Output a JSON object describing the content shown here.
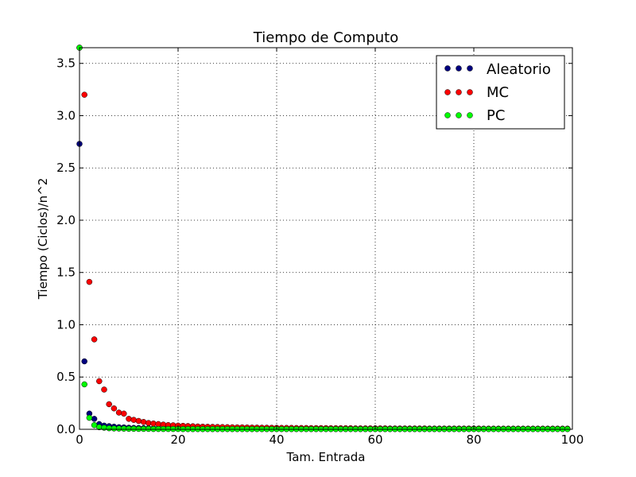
{
  "chart_data": {
    "type": "scatter",
    "title": "Tiempo de Computo",
    "xlabel": "Tam. Entrada",
    "ylabel": "Tiempo (Ciclos)/n^2",
    "xlim": [
      0,
      100
    ],
    "ylim": [
      0,
      3.65
    ],
    "xticks": [
      0,
      20,
      40,
      60,
      80,
      100
    ],
    "yticks": [
      0.0,
      0.5,
      1.0,
      1.5,
      2.0,
      2.5,
      3.0,
      3.5
    ],
    "grid": true,
    "legend_position": "top-right",
    "series": [
      {
        "name": "Aleatorio",
        "color": "#00007f",
        "values": [
          2.73,
          0.65,
          0.15,
          0.1,
          0.05,
          0.035,
          0.03,
          0.025,
          0.02,
          0.018,
          0.015,
          0.013,
          0.012,
          0.011,
          0.01,
          0.009,
          0.009,
          0.008,
          0.008,
          0.007,
          0.007,
          0.007,
          0.006,
          0.006,
          0.006,
          0.006,
          0.005,
          0.005,
          0.005,
          0.005,
          0.005,
          0.005,
          0.005,
          0.005,
          0.004,
          0.004,
          0.004,
          0.004,
          0.004,
          0.004,
          0.004,
          0.004,
          0.004,
          0.004,
          0.004,
          0.004,
          0.004,
          0.004,
          0.004,
          0.004,
          0.004,
          0.004,
          0.004,
          0.004,
          0.004,
          0.004,
          0.004,
          0.004,
          0.004,
          0.004,
          0.004,
          0.004,
          0.004,
          0.004,
          0.004,
          0.004,
          0.004,
          0.004,
          0.004,
          0.004,
          0.004,
          0.004,
          0.004,
          0.004,
          0.004,
          0.004,
          0.004,
          0.004,
          0.004,
          0.004,
          0.004,
          0.004,
          0.004,
          0.004,
          0.004,
          0.004,
          0.004,
          0.004,
          0.004,
          0.004,
          0.004,
          0.004,
          0.004,
          0.004,
          0.004,
          0.004,
          0.004,
          0.004,
          0.004,
          0.004
        ]
      },
      {
        "name": "MC",
        "color": "#ff0000",
        "values": [
          3.65,
          3.2,
          1.41,
          0.86,
          0.46,
          0.38,
          0.24,
          0.2,
          0.16,
          0.15,
          0.1,
          0.09,
          0.08,
          0.07,
          0.06,
          0.055,
          0.05,
          0.045,
          0.04,
          0.038,
          0.035,
          0.033,
          0.031,
          0.029,
          0.027,
          0.025,
          0.024,
          0.023,
          0.022,
          0.021,
          0.02,
          0.019,
          0.018,
          0.018,
          0.017,
          0.016,
          0.016,
          0.015,
          0.015,
          0.014,
          0.014,
          0.013,
          0.013,
          0.013,
          0.012,
          0.012,
          0.012,
          0.011,
          0.011,
          0.011,
          0.011,
          0.01,
          0.01,
          0.01,
          0.01,
          0.01,
          0.009,
          0.009,
          0.009,
          0.009,
          0.009,
          0.009,
          0.009,
          0.008,
          0.008,
          0.008,
          0.008,
          0.008,
          0.008,
          0.008,
          0.008,
          0.007,
          0.007,
          0.007,
          0.007,
          0.007,
          0.007,
          0.007,
          0.007,
          0.007,
          0.007,
          0.007,
          0.006,
          0.006,
          0.006,
          0.006,
          0.006,
          0.006,
          0.006,
          0.006,
          0.006,
          0.006,
          0.006,
          0.006,
          0.006,
          0.006,
          0.006,
          0.006,
          0.006,
          0.006
        ]
      },
      {
        "name": "PC",
        "color": "#00ff00",
        "values": [
          3.65,
          0.43,
          0.11,
          0.04,
          0.02,
          0.015,
          0.01,
          0.008,
          0.007,
          0.006,
          0.005,
          0.005,
          0.004,
          0.004,
          0.004,
          0.003,
          0.003,
          0.003,
          0.003,
          0.003,
          0.003,
          0.002,
          0.002,
          0.002,
          0.002,
          0.002,
          0.002,
          0.002,
          0.002,
          0.002,
          0.002,
          0.002,
          0.002,
          0.002,
          0.002,
          0.002,
          0.002,
          0.002,
          0.002,
          0.002,
          0.002,
          0.002,
          0.002,
          0.002,
          0.002,
          0.002,
          0.002,
          0.002,
          0.002,
          0.002,
          0.002,
          0.002,
          0.002,
          0.002,
          0.002,
          0.002,
          0.002,
          0.002,
          0.002,
          0.002,
          0.002,
          0.002,
          0.002,
          0.002,
          0.002,
          0.002,
          0.002,
          0.002,
          0.002,
          0.002,
          0.002,
          0.002,
          0.002,
          0.002,
          0.002,
          0.002,
          0.002,
          0.002,
          0.002,
          0.002,
          0.002,
          0.002,
          0.002,
          0.002,
          0.002,
          0.002,
          0.002,
          0.002,
          0.002,
          0.002,
          0.002,
          0.002,
          0.002,
          0.002,
          0.002,
          0.002,
          0.002,
          0.002,
          0.002,
          0.002
        ]
      }
    ]
  }
}
